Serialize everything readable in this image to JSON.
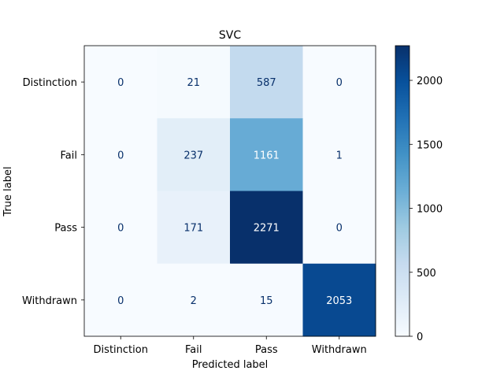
{
  "chart_data": {
    "type": "heatmap",
    "title": "SVC",
    "xlabel": "Predicted label",
    "ylabel": "True label",
    "x_categories": [
      "Distinction",
      "Fail",
      "Pass",
      "Withdrawn"
    ],
    "y_categories": [
      "Distinction",
      "Fail",
      "Pass",
      "Withdrawn"
    ],
    "values": [
      [
        0,
        21,
        587,
        0
      ],
      [
        0,
        237,
        1161,
        1
      ],
      [
        0,
        171,
        2271,
        0
      ],
      [
        0,
        2,
        15,
        2053
      ]
    ],
    "colormap": "Blues",
    "color_range": [
      0,
      2271
    ],
    "colorbar_ticks": [
      0,
      500,
      1000,
      1500,
      2000
    ],
    "grid": false
  }
}
